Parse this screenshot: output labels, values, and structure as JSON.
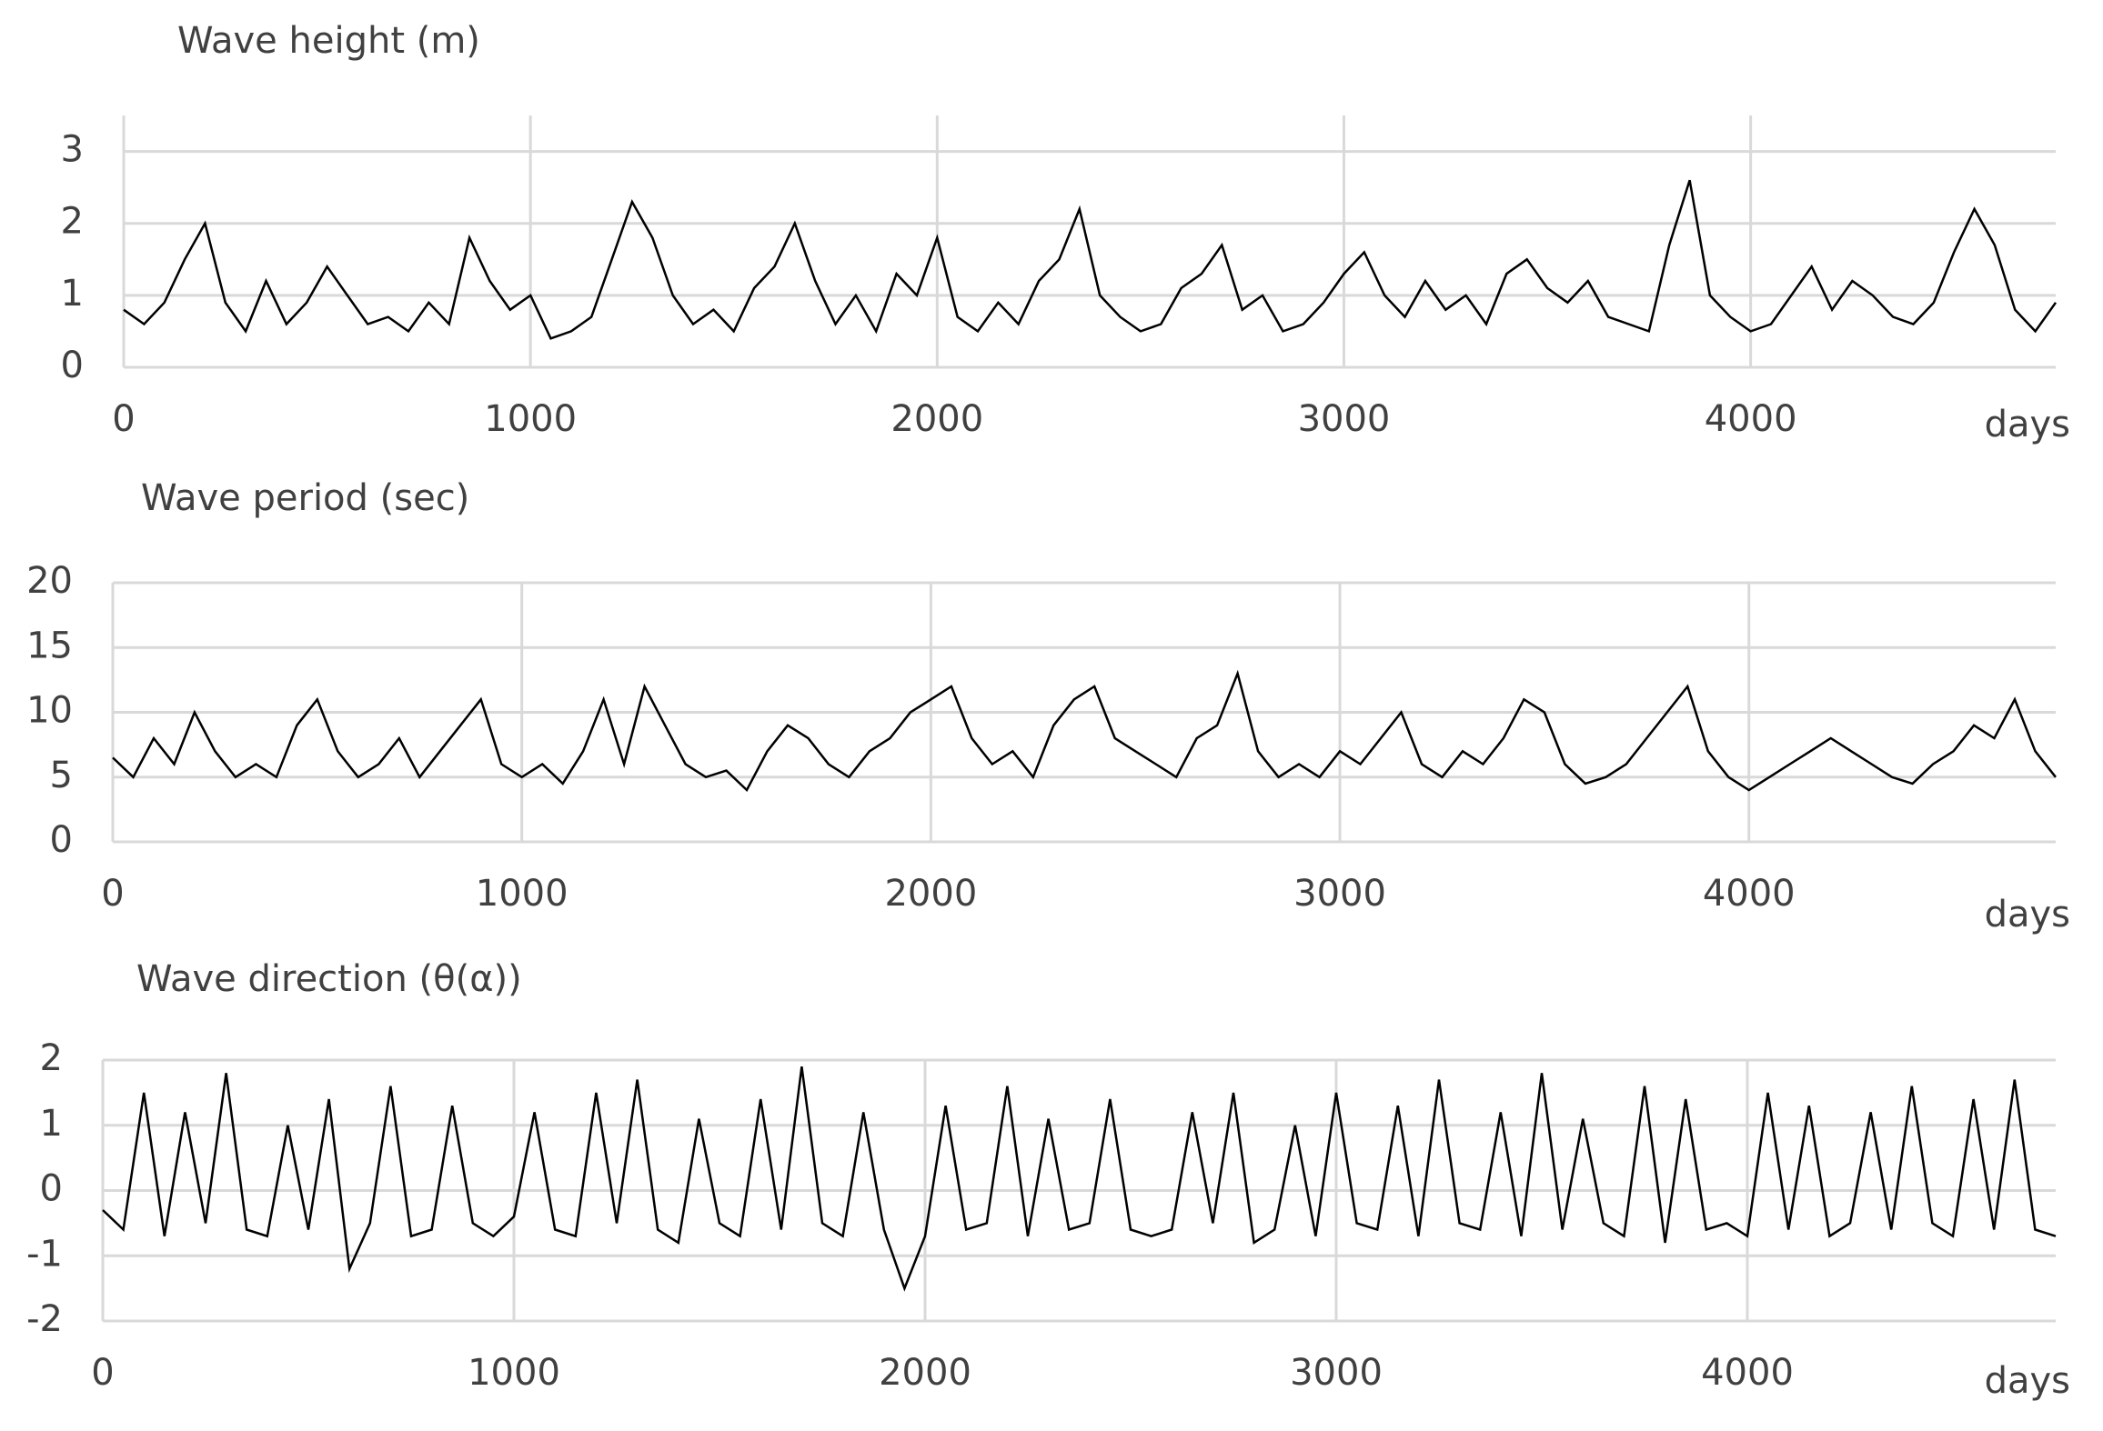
{
  "chart_data": [
    {
      "type": "line",
      "title": "Wave height (m)",
      "x_label": "days",
      "color": "#000000",
      "grid": true,
      "xlim": [
        0,
        4750
      ],
      "xticks": [
        0,
        1000,
        2000,
        3000,
        4000
      ],
      "ylim": [
        0,
        3.5
      ],
      "yticks": [
        0,
        1,
        2,
        3
      ],
      "x": [
        0,
        50,
        100,
        150,
        200,
        250,
        300,
        350,
        400,
        450,
        500,
        550,
        600,
        650,
        700,
        750,
        800,
        850,
        900,
        950,
        1000,
        1050,
        1100,
        1150,
        1200,
        1250,
        1300,
        1350,
        1400,
        1450,
        1500,
        1550,
        1600,
        1650,
        1700,
        1750,
        1800,
        1850,
        1900,
        1950,
        2000,
        2050,
        2100,
        2150,
        2200,
        2250,
        2300,
        2350,
        2400,
        2450,
        2500,
        2550,
        2600,
        2650,
        2700,
        2750,
        2800,
        2850,
        2900,
        2950,
        3000,
        3050,
        3100,
        3150,
        3200,
        3250,
        3300,
        3350,
        3400,
        3450,
        3500,
        3550,
        3600,
        3650,
        3700,
        3750,
        3800,
        3850,
        3900,
        3950,
        4000,
        4050,
        4100,
        4150,
        4200,
        4250,
        4300,
        4350,
        4400,
        4450,
        4500,
        4550,
        4600,
        4650,
        4700,
        4750
      ],
      "values": [
        0.8,
        0.6,
        0.9,
        1.5,
        2.0,
        0.9,
        0.5,
        1.2,
        0.6,
        0.9,
        1.4,
        1.0,
        0.6,
        0.7,
        0.5,
        0.9,
        0.6,
        1.8,
        1.2,
        0.8,
        1.0,
        0.4,
        0.5,
        0.7,
        1.5,
        2.3,
        1.8,
        1.0,
        0.6,
        0.8,
        0.5,
        1.1,
        1.4,
        2.0,
        1.2,
        0.6,
        1.0,
        0.5,
        1.3,
        1.0,
        1.8,
        0.7,
        0.5,
        0.9,
        0.6,
        1.2,
        1.5,
        2.2,
        1.0,
        0.7,
        0.5,
        0.6,
        1.1,
        1.3,
        1.7,
        0.8,
        1.0,
        0.5,
        0.6,
        0.9,
        1.3,
        1.6,
        1.0,
        0.7,
        1.2,
        0.8,
        1.0,
        0.6,
        1.3,
        1.5,
        1.1,
        0.9,
        1.2,
        0.7,
        0.6,
        0.5,
        1.7,
        2.6,
        1.0,
        0.7,
        0.5,
        0.6,
        1.0,
        1.4,
        0.8,
        1.2,
        1.0,
        0.7,
        0.6,
        0.9,
        1.6,
        2.2,
        1.7,
        0.8,
        0.5,
        0.9
      ]
    },
    {
      "type": "line",
      "title": "Wave period (sec)",
      "x_label": "days",
      "color": "#000000",
      "grid": true,
      "xlim": [
        0,
        4750
      ],
      "xticks": [
        0,
        1000,
        2000,
        3000,
        4000
      ],
      "ylim": [
        0,
        20
      ],
      "yticks": [
        0,
        5,
        10,
        15,
        20
      ],
      "x": [
        0,
        50,
        100,
        150,
        200,
        250,
        300,
        350,
        400,
        450,
        500,
        550,
        600,
        650,
        700,
        750,
        800,
        850,
        900,
        950,
        1000,
        1050,
        1100,
        1150,
        1200,
        1250,
        1300,
        1350,
        1400,
        1450,
        1500,
        1550,
        1600,
        1650,
        1700,
        1750,
        1800,
        1850,
        1900,
        1950,
        2000,
        2050,
        2100,
        2150,
        2200,
        2250,
        2300,
        2350,
        2400,
        2450,
        2500,
        2550,
        2600,
        2650,
        2700,
        2750,
        2800,
        2850,
        2900,
        2950,
        3000,
        3050,
        3100,
        3150,
        3200,
        3250,
        3300,
        3350,
        3400,
        3450,
        3500,
        3550,
        3600,
        3650,
        3700,
        3750,
        3800,
        3850,
        3900,
        3950,
        4000,
        4050,
        4100,
        4150,
        4200,
        4250,
        4300,
        4350,
        4400,
        4450,
        4500,
        4550,
        4600,
        4650,
        4700,
        4750
      ],
      "values": [
        6.5,
        5,
        8,
        6,
        10,
        7,
        5,
        6,
        5,
        9,
        11,
        7,
        5,
        6,
        8,
        5,
        7,
        9,
        11,
        6,
        5,
        6,
        4.5,
        7,
        11,
        6,
        12,
        9,
        6,
        5,
        5.5,
        4,
        7,
        9,
        8,
        6,
        5,
        7,
        8,
        10,
        11,
        12,
        8,
        6,
        7,
        5,
        9,
        11,
        12,
        8,
        7,
        6,
        5,
        8,
        9,
        13,
        7,
        5,
        6,
        5,
        7,
        6,
        8,
        10,
        6,
        5,
        7,
        6,
        8,
        11,
        10,
        6,
        4.5,
        5,
        6,
        8,
        10,
        12,
        7,
        5,
        4,
        5,
        6,
        7,
        8,
        7,
        6,
        5,
        4.5,
        6,
        7,
        9,
        8,
        11,
        7,
        5
      ]
    },
    {
      "type": "line",
      "title": "Wave direction (θ(α))",
      "x_label": "days",
      "color": "#000000",
      "grid": true,
      "xlim": [
        0,
        4750
      ],
      "xticks": [
        0,
        1000,
        2000,
        3000,
        4000
      ],
      "ylim": [
        -2,
        2
      ],
      "yticks": [
        -2,
        -1,
        0,
        1,
        2
      ],
      "x": [
        0,
        50,
        100,
        150,
        200,
        250,
        300,
        350,
        400,
        450,
        500,
        550,
        600,
        650,
        700,
        750,
        800,
        850,
        900,
        950,
        1000,
        1050,
        1100,
        1150,
        1200,
        1250,
        1300,
        1350,
        1400,
        1450,
        1500,
        1550,
        1600,
        1650,
        1700,
        1750,
        1800,
        1850,
        1900,
        1950,
        2000,
        2050,
        2100,
        2150,
        2200,
        2250,
        2300,
        2350,
        2400,
        2450,
        2500,
        2550,
        2600,
        2650,
        2700,
        2750,
        2800,
        2850,
        2900,
        2950,
        3000,
        3050,
        3100,
        3150,
        3200,
        3250,
        3300,
        3350,
        3400,
        3450,
        3500,
        3550,
        3600,
        3650,
        3700,
        3750,
        3800,
        3850,
        3900,
        3950,
        4000,
        4050,
        4100,
        4150,
        4200,
        4250,
        4300,
        4350,
        4400,
        4450,
        4500,
        4550,
        4600,
        4650,
        4700,
        4750
      ],
      "values": [
        -0.3,
        -0.6,
        1.5,
        -0.7,
        1.2,
        -0.5,
        1.8,
        -0.6,
        -0.7,
        1.0,
        -0.6,
        1.4,
        -1.2,
        -0.5,
        1.6,
        -0.7,
        -0.6,
        1.3,
        -0.5,
        -0.7,
        -0.4,
        1.2,
        -0.6,
        -0.7,
        1.5,
        -0.5,
        1.7,
        -0.6,
        -0.8,
        1.1,
        -0.5,
        -0.7,
        1.4,
        -0.6,
        1.9,
        -0.5,
        -0.7,
        1.2,
        -0.6,
        -1.5,
        -0.7,
        1.3,
        -0.6,
        -0.5,
        1.6,
        -0.7,
        1.1,
        -0.6,
        -0.5,
        1.4,
        -0.6,
        -0.7,
        -0.6,
        1.2,
        -0.5,
        1.5,
        -0.8,
        -0.6,
        1.0,
        -0.7,
        1.5,
        -0.5,
        -0.6,
        1.3,
        -0.7,
        1.7,
        -0.5,
        -0.6,
        1.2,
        -0.7,
        1.8,
        -0.6,
        1.1,
        -0.5,
        -0.7,
        1.6,
        -0.8,
        1.4,
        -0.6,
        -0.5,
        -0.7,
        1.5,
        -0.6,
        1.3,
        -0.7,
        -0.5,
        1.2,
        -0.6,
        1.6,
        -0.5,
        -0.7,
        1.4,
        -0.6,
        1.7,
        -0.6,
        -0.7
      ]
    }
  ]
}
